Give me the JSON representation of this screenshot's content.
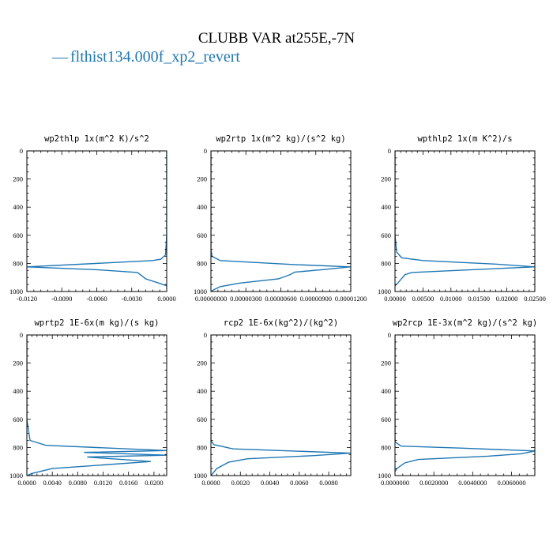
{
  "figure": {
    "title": "CLUBB VAR at255E,-7N",
    "legend": {
      "marker": "—",
      "label": "flthist134.000f_xp2_revert",
      "color": "#1f77b4"
    }
  },
  "chart_data": [
    {
      "type": "line",
      "title": "wp2thlp   1x(m^2 K)/s^2",
      "xlim": [
        -0.012,
        0.0
      ],
      "ylim": [
        1000,
        0
      ],
      "xticks": [
        -0.012,
        -0.009,
        -0.006,
        -0.003,
        0.0
      ],
      "xtick_labels": [
        "-0.0120",
        "-0.0090",
        "-0.0060",
        "-0.0030",
        "0.0000"
      ],
      "yticks": [
        0,
        200,
        400,
        600,
        800,
        1000
      ],
      "ytick_labels": [
        "0",
        "200",
        "400",
        "600",
        "800",
        "1000"
      ],
      "series": [
        {
          "color": "#1f77b4",
          "x": [
            0.0,
            0.0,
            0.0,
            -0.0001,
            -0.0005,
            -0.0012,
            -0.012,
            -0.006,
            -0.0025,
            -0.0018,
            -0.0005,
            0.0
          ],
          "y": [
            0,
            300,
            600,
            740,
            770,
            780,
            825,
            845,
            865,
            910,
            945,
            960
          ]
        }
      ]
    },
    {
      "type": "line",
      "title": "wp2rtp  1x(m^2 kg)/(s^2 kg)",
      "xlim": [
        0.0,
        1.2e-05
      ],
      "ylim": [
        1000,
        0
      ],
      "xticks": [
        0.0,
        3e-06,
        6e-06,
        9e-06,
        1.2e-05
      ],
      "xtick_labels": [
        "0.00000000",
        "0.00000300",
        "0.00000600",
        "0.00000900",
        "0.00001200"
      ],
      "yticks": [
        0,
        200,
        400,
        600,
        800,
        1000
      ],
      "ytick_labels": [
        "0",
        "200",
        "400",
        "600",
        "800",
        "1000"
      ],
      "series": [
        {
          "color": "#1f77b4",
          "x": [
            0.0,
            0.0,
            1e-07,
            8e-07,
            7e-06,
            1.2e-05,
            9.5e-06,
            7.2e-06,
            6.8e-06,
            5.8e-06,
            2.5e-06,
            8e-07,
            3e-07,
            0.0
          ],
          "y": [
            0,
            700,
            750,
            780,
            808,
            825,
            845,
            862,
            880,
            910,
            940,
            965,
            985,
            1000
          ]
        }
      ]
    },
    {
      "type": "line",
      "title": "wpthlp2  1x(m K^2)/s",
      "xlim": [
        0.0,
        0.025
      ],
      "ylim": [
        1000,
        0
      ],
      "xticks": [
        0.0,
        0.005,
        0.01,
        0.015,
        0.02,
        0.025
      ],
      "xtick_labels": [
        "0.00000",
        "0.00500",
        "0.01000",
        "0.01500",
        "0.02000",
        "0.02500"
      ],
      "yticks": [
        0,
        200,
        400,
        600,
        800,
        1000
      ],
      "ytick_labels": [
        "0",
        "200",
        "400",
        "600",
        "800",
        "1000"
      ],
      "series": [
        {
          "color": "#1f77b4",
          "x": [
            0.0,
            0.0,
            0.0003,
            0.0012,
            0.005,
            0.018,
            0.025,
            0.011,
            0.003,
            0.0018,
            0.0006,
            0.0
          ],
          "y": [
            0,
            600,
            720,
            760,
            780,
            805,
            825,
            850,
            865,
            880,
            935,
            960
          ]
        }
      ]
    },
    {
      "type": "line",
      "title": "wprtp2  1E-6x(m kg)/(s kg)",
      "xlim": [
        0.0,
        0.022
      ],
      "ylim": [
        1000,
        0
      ],
      "xticks": [
        0.0,
        0.004,
        0.008,
        0.012,
        0.016,
        0.02
      ],
      "xtick_labels": [
        "0.0000",
        "0.0040",
        "0.0080",
        "0.0120",
        "0.0160",
        "0.0200"
      ],
      "yticks": [
        0,
        200,
        400,
        600,
        800,
        1000
      ],
      "ytick_labels": [
        "0",
        "200",
        "400",
        "600",
        "800",
        "1000"
      ],
      "series": [
        {
          "color": "#1f77b4",
          "x": [
            0.0,
            0.0,
            0.0005,
            0.003,
            0.022,
            0.009,
            0.022,
            0.0095,
            0.0195,
            0.004,
            0.0008,
            0.0
          ],
          "y": [
            0,
            600,
            750,
            785,
            822,
            835,
            855,
            868,
            900,
            950,
            985,
            1000
          ]
        }
      ]
    },
    {
      "type": "line",
      "title": "rcp2  1E-6x(kg^2)/(kg^2)",
      "xlim": [
        0.0,
        0.0095
      ],
      "ylim": [
        1000,
        0
      ],
      "xticks": [
        0.0,
        0.002,
        0.004,
        0.006,
        0.008
      ],
      "xtick_labels": [
        "0.0000",
        "0.0020",
        "0.0040",
        "0.0060",
        "0.0080"
      ],
      "yticks": [
        0,
        200,
        400,
        600,
        800,
        1000
      ],
      "ytick_labels": [
        "0",
        "200",
        "400",
        "600",
        "800",
        "1000"
      ],
      "series": [
        {
          "color": "#1f77b4",
          "x": [
            0.0,
            0.0,
            0.0002,
            0.0015,
            0.0095,
            0.007,
            0.0025,
            0.0012,
            0.0004,
            0.0
          ],
          "y": [
            0,
            750,
            780,
            810,
            840,
            858,
            880,
            905,
            950,
            1000
          ]
        }
      ]
    },
    {
      "type": "line",
      "title": "wp2rcp  1E-3x(m^2 kg)/(s^2 kg)",
      "xlim": [
        0.0,
        0.0072
      ],
      "ylim": [
        1000,
        0
      ],
      "xticks": [
        0.0,
        0.002,
        0.004,
        0.006
      ],
      "xtick_labels": [
        "0.0000000",
        "0.0020000",
        "0.0040000",
        "0.0060000"
      ],
      "yticks": [
        0,
        200,
        400,
        600,
        800,
        1000
      ],
      "ytick_labels": [
        "0",
        "200",
        "400",
        "600",
        "800",
        "1000"
      ],
      "series": [
        {
          "color": "#1f77b4",
          "x": [
            0.0,
            0.0,
            0.0003,
            0.0035,
            0.0072,
            0.0065,
            0.0048,
            0.0012,
            0.0005,
            0.0001,
            0.0
          ],
          "y": [
            0,
            760,
            790,
            805,
            825,
            845,
            862,
            885,
            910,
            950,
            970
          ]
        }
      ]
    }
  ]
}
